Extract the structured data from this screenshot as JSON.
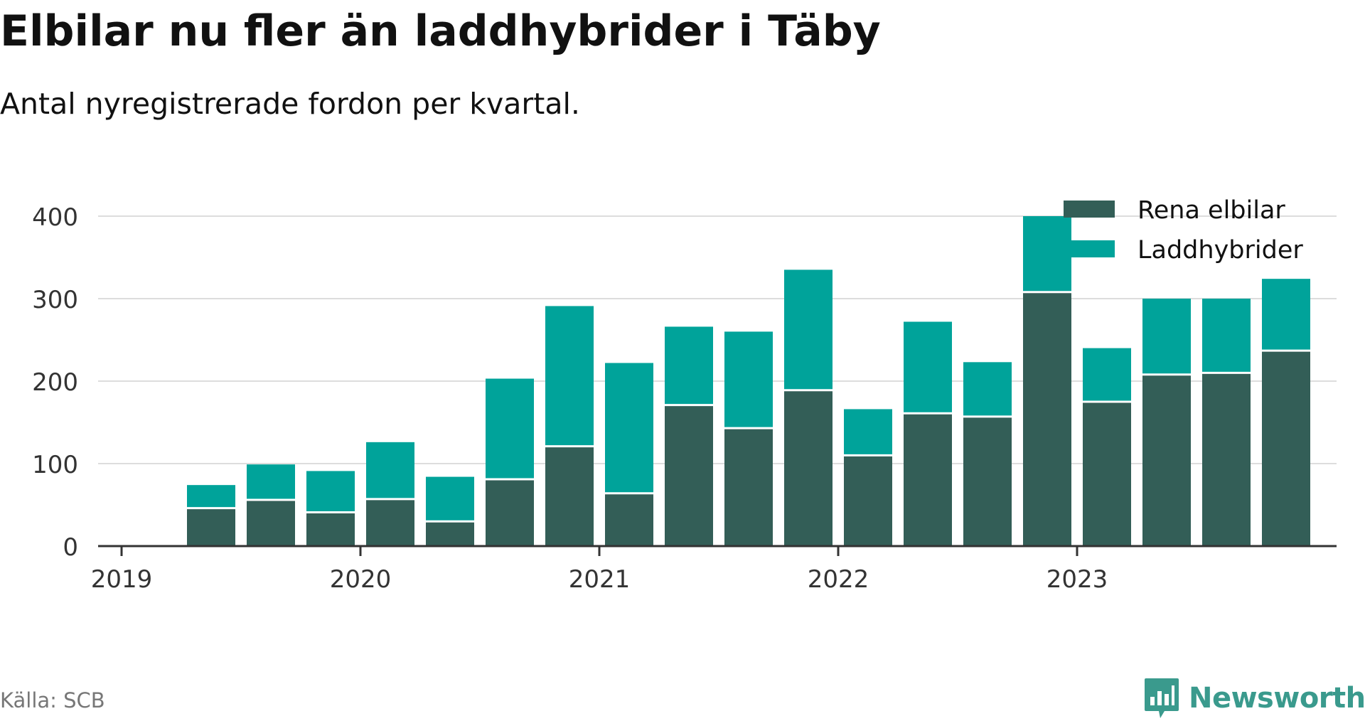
{
  "title": "Elbilar nu fler än laddhybrider i Täby",
  "subtitle": "Antal nyregistrerade fordon per kvartal.",
  "source": "Källa: SCB",
  "brand": "Newsworthy",
  "colors": {
    "elbilar": "#335e57",
    "laddhybrider": "#00a39a",
    "brand": "#3a9a8d",
    "grid": "#dddddd",
    "axis": "#333333"
  },
  "chart_data": {
    "type": "bar",
    "stacked": true,
    "title": "Elbilar nu fler än laddhybrider i Täby",
    "subtitle": "Antal nyregistrerade fordon per kvartal.",
    "xlabel": "",
    "ylabel": "",
    "ylim": [
      0,
      400
    ],
    "yticks": [
      0,
      100,
      200,
      300,
      400
    ],
    "year_ticks": [
      "2019",
      "2020",
      "2021",
      "2022",
      "2023"
    ],
    "legend_position": "top-right",
    "grid": true,
    "categories": [
      "2019 Q2",
      "2019 Q3",
      "2019 Q4",
      "2020 Q1",
      "2020 Q2",
      "2020 Q3",
      "2020 Q4",
      "2021 Q1",
      "2021 Q2",
      "2021 Q3",
      "2021 Q4",
      "2022 Q1",
      "2022 Q2",
      "2022 Q3",
      "2022 Q4",
      "2023 Q1",
      "2023 Q2",
      "2023 Q3",
      "2023 Q4"
    ],
    "series": [
      {
        "name": "Rena elbilar",
        "values": [
          46,
          56,
          41,
          57,
          30,
          81,
          121,
          64,
          171,
          143,
          189,
          110,
          161,
          157,
          308,
          175,
          208,
          210,
          237
        ]
      },
      {
        "name": "Laddhybrider",
        "values": [
          28,
          43,
          50,
          69,
          54,
          122,
          170,
          158,
          95,
          117,
          146,
          56,
          111,
          66,
          92,
          65,
          92,
          90,
          87
        ]
      }
    ]
  }
}
